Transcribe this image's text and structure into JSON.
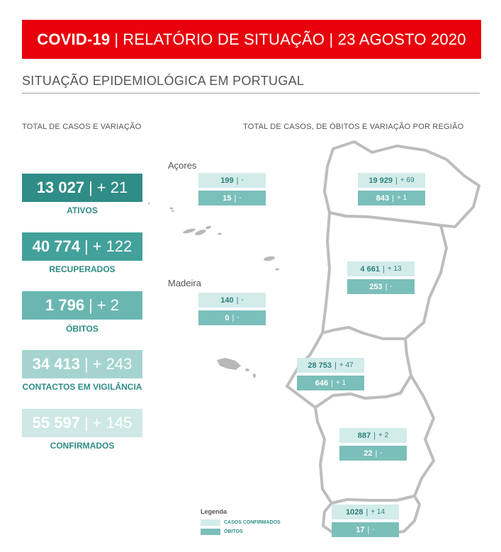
{
  "header": {
    "bold": "COVID-19",
    "rest": "RELATÓRIO DE SITUAÇÃO | 23 AGOSTO 2020"
  },
  "section_title": "SITUAÇÃO EPIDEMIOLÓGICA EM PORTUGAL",
  "left_subtitle": "TOTAL DE CASOS E VARIAÇÃO",
  "right_subtitle": "TOTAL DE CASOS, DE ÓBITOS  E VARIAÇÃO POR REGIÃO",
  "kpis": [
    {
      "value": "13 027",
      "variation": "+ 21",
      "label": "ATIVOS",
      "color": "#2f8c86",
      "label_color": "#2f8c86"
    },
    {
      "value": "40 774",
      "variation": "+ 122",
      "label": "RECUPERADOS",
      "color": "#42a19b",
      "label_color": "#2f8c86"
    },
    {
      "value": "1 796",
      "variation": "+ 2",
      "label": "ÓBITOS",
      "color": "#6ab7b1",
      "label_color": "#2f8c86"
    },
    {
      "value": "34 413",
      "variation": "+ 243",
      "label": "CONTACTOS EM VIGILÂNCIA",
      "color": "#a5d4d0",
      "label_color": "#2f8c86"
    },
    {
      "value": "55 597",
      "variation": "+ 145",
      "label": "CONFIRMADOS",
      "color": "#cfe8e5",
      "label_color": "#2f8c86"
    }
  ],
  "islands": {
    "acores_label": "Açores",
    "madeira_label": "Madeira"
  },
  "regions": [
    {
      "id": "acores",
      "cases": "199",
      "cases_var": "-",
      "deaths": "15",
      "deaths_var": "-"
    },
    {
      "id": "madeira",
      "cases": "140",
      "cases_var": "-",
      "deaths": "0",
      "deaths_var": "-"
    },
    {
      "id": "norte",
      "cases": "19 929",
      "cases_var": "+ 69",
      "deaths": "843",
      "deaths_var": "+ 1"
    },
    {
      "id": "centro",
      "cases": "4 661",
      "cases_var": "+ 13",
      "deaths": "253",
      "deaths_var": "-"
    },
    {
      "id": "lvt",
      "cases": "28 753",
      "cases_var": "+ 47",
      "deaths": "646",
      "deaths_var": "+ 1"
    },
    {
      "id": "alentejo",
      "cases": "887",
      "cases_var": "+ 2",
      "deaths": "22",
      "deaths_var": "-"
    },
    {
      "id": "algarve",
      "cases": "1028",
      "cases_var": "+ 14",
      "deaths": "17",
      "deaths_var": "-"
    }
  ],
  "legend": {
    "title": "Legenda",
    "cases_label": "CASOS CONFIRMADOS",
    "deaths_label": "ÓBITOS",
    "cases_color": "#d2ecea",
    "deaths_color": "#7bbfba"
  }
}
